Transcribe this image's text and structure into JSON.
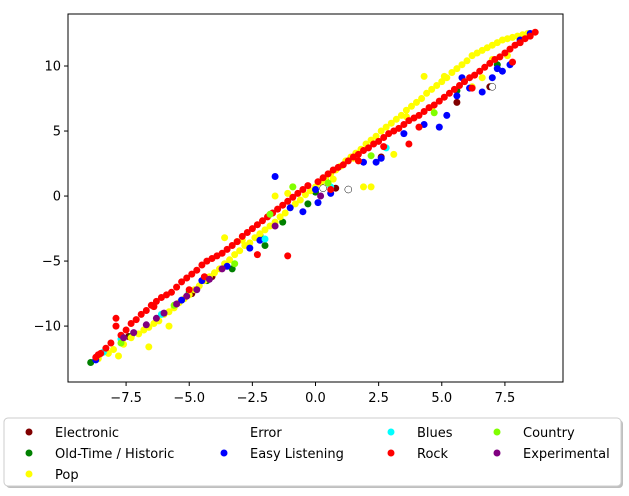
{
  "chart_data": {
    "type": "scatter",
    "title": "",
    "xlabel": "",
    "ylabel": "",
    "xlim": [
      -9.8,
      9.8
    ],
    "ylim": [
      -14.3,
      14.0
    ],
    "xticks": [
      -7.5,
      -5.0,
      -2.5,
      0.0,
      2.5,
      5.0,
      7.5
    ],
    "xtick_labels": [
      "−7.5",
      "−5.0",
      "−2.5",
      "0.0",
      "2.5",
      "5.0",
      "7.5"
    ],
    "yticks": [
      -10,
      -5,
      0,
      5,
      10
    ],
    "ytick_labels": [
      "−10",
      "−5",
      "0",
      "5",
      "10"
    ],
    "grid": false,
    "legend_position": "bottom",
    "series": [
      {
        "name": "Electronic",
        "color": "#800000",
        "x": [
          -8.6,
          -7.4,
          -4.9,
          -4.1,
          0.8,
          2.6,
          5.6,
          6.9,
          8.1
        ],
        "y": [
          -12.3,
          -10.8,
          -7.5,
          -6.2,
          0.6,
          3.0,
          7.2,
          8.4,
          11.8
        ]
      },
      {
        "name": "Old-Time / Historic",
        "color": "#008000",
        "x": [
          -8.9,
          -7.3,
          -5.0,
          -4.3,
          -3.3,
          -2.2,
          -2.0,
          -1.3,
          -0.3,
          0.0,
          0.4,
          5.6,
          7.2
        ],
        "y": [
          -12.8,
          -10.8,
          -7.4,
          -6.5,
          -5.6,
          -3.0,
          -3.8,
          -2.0,
          -0.6,
          0.3,
          1.2,
          8.1,
          10.1
        ]
      },
      {
        "name": "Pop",
        "color": "#ffff00",
        "x": [
          -8.6,
          -8.2,
          -8.0,
          -7.6,
          -7.3,
          -7.0,
          -6.8,
          -6.6,
          -6.4,
          -6.2,
          -6.0,
          -5.8,
          -5.6,
          -5.4,
          -5.2,
          -5.0,
          -4.8,
          -4.6,
          -4.4,
          -4.2,
          -4.0,
          -3.8,
          -3.6,
          -3.4,
          -3.2,
          -3.0,
          -2.8,
          -2.6,
          -2.4,
          -2.2,
          -2.0,
          -1.8,
          -1.6,
          -1.4,
          -1.2,
          -1.0,
          -0.8,
          -0.6,
          -0.4,
          -0.2,
          0.0,
          0.2,
          0.4,
          0.6,
          0.8,
          1.0,
          1.2,
          1.4,
          1.6,
          1.8,
          2.0,
          2.2,
          2.4,
          2.6,
          2.8,
          3.0,
          3.2,
          3.4,
          3.6,
          3.8,
          4.0,
          4.2,
          4.4,
          4.6,
          4.8,
          5.0,
          5.2,
          5.4,
          5.6,
          5.8,
          6.0,
          6.2,
          6.4,
          6.6,
          6.8,
          7.0,
          7.2,
          7.4,
          7.6,
          7.8,
          8.0,
          8.2,
          8.4,
          -6.6,
          -5.8,
          -3.6,
          -2.9,
          -1.6,
          -0.9,
          0.7,
          1.9,
          2.2,
          3.1,
          4.3,
          5.1,
          6.2,
          7.0,
          7.6,
          -7.8,
          -3.1,
          0.3,
          3.6,
          6.6,
          -1.1,
          1.5,
          4.6
        ],
        "y": [
          -12.5,
          -12.1,
          -11.8,
          -11.4,
          -10.9,
          -10.6,
          -10.3,
          -10.1,
          -9.8,
          -9.6,
          -9.1,
          -8.9,
          -8.6,
          -8.2,
          -7.9,
          -7.6,
          -7.2,
          -6.9,
          -6.5,
          -6.2,
          -5.9,
          -5.6,
          -5.2,
          -4.9,
          -4.5,
          -4.2,
          -3.8,
          -3.6,
          -3.2,
          -2.9,
          -2.6,
          -2.3,
          -2.0,
          -1.6,
          -1.3,
          -0.9,
          -0.6,
          -0.3,
          0.1,
          0.4,
          0.7,
          1.0,
          1.4,
          1.7,
          2.0,
          2.3,
          2.7,
          3.0,
          3.3,
          3.6,
          4.0,
          4.3,
          4.6,
          5.0,
          5.3,
          5.6,
          5.9,
          6.2,
          6.6,
          6.9,
          7.2,
          7.5,
          7.9,
          8.2,
          8.5,
          8.8,
          9.1,
          9.5,
          9.8,
          10.1,
          10.4,
          10.8,
          11.0,
          11.2,
          11.4,
          11.6,
          11.8,
          12.0,
          12.1,
          12.2,
          12.3,
          12.4,
          12.5,
          -11.6,
          -10.0,
          -3.2,
          -3.4,
          0.0,
          0.7,
          1.3,
          0.7,
          0.7,
          3.2,
          9.2,
          9.2,
          8.4,
          10.5,
          10.8,
          -12.3,
          -3.5,
          1.2,
          6.1,
          9.1,
          0.2,
          2.9,
          6.8
        ]
      },
      {
        "name": "Error",
        "color": "#ffffff",
        "stroke": "#000000",
        "x": [
          0.3,
          1.3,
          7.0
        ],
        "y": [
          0.6,
          0.5,
          8.4
        ]
      },
      {
        "name": "Easy Listening",
        "color": "#0000ff",
        "x": [
          -8.7,
          -5.3,
          -4.5,
          -3.5,
          -2.6,
          -2.2,
          -1.6,
          -1.0,
          -0.5,
          0.0,
          0.1,
          0.6,
          1.9,
          2.4,
          2.6,
          3.5,
          4.3,
          4.9,
          5.2,
          5.6,
          5.8,
          6.1,
          6.6,
          7.0,
          7.2,
          7.4,
          7.7,
          8.1,
          8.5
        ],
        "y": [
          -12.6,
          -8.0,
          -6.5,
          -5.4,
          -4.0,
          -3.4,
          1.5,
          -0.9,
          -1.2,
          0.5,
          -0.5,
          0.2,
          2.6,
          2.6,
          2.9,
          4.8,
          5.5,
          5.3,
          6.2,
          7.7,
          9.1,
          8.3,
          8.0,
          9.1,
          9.8,
          9.6,
          10.1,
          12.0,
          12.5
        ]
      },
      {
        "name": "Blues",
        "color": "#00ffff",
        "x": [
          -8.4,
          -7.7,
          -6.1,
          -2.0,
          0.6,
          2.8
        ],
        "y": [
          -12.0,
          -11.0,
          -9.1,
          -3.3,
          0.7,
          3.7
        ]
      },
      {
        "name": "Rock",
        "color": "#ff0000",
        "x": [
          -8.7,
          -8.5,
          -8.3,
          -8.1,
          -7.9,
          -7.7,
          -7.5,
          -7.3,
          -7.1,
          -6.9,
          -6.7,
          -6.5,
          -6.3,
          -6.1,
          -5.9,
          -5.7,
          -5.5,
          -5.3,
          -5.1,
          -4.9,
          -4.7,
          -4.5,
          -4.3,
          -4.1,
          -3.9,
          -3.7,
          -3.5,
          -3.3,
          -3.1,
          -2.9,
          -2.7,
          -2.5,
          -2.3,
          -2.1,
          -1.9,
          -1.7,
          -1.5,
          -1.3,
          -1.1,
          -0.9,
          -0.7,
          -0.5,
          -0.3,
          0.1,
          0.3,
          0.5,
          0.7,
          0.9,
          1.1,
          1.3,
          1.5,
          1.7,
          1.9,
          2.1,
          2.3,
          2.5,
          2.7,
          2.9,
          3.1,
          3.3,
          3.5,
          3.7,
          3.9,
          4.1,
          4.3,
          4.5,
          4.7,
          4.9,
          5.1,
          5.3,
          5.5,
          5.7,
          5.9,
          6.1,
          6.3,
          6.5,
          6.7,
          6.9,
          7.1,
          7.3,
          7.5,
          7.7,
          7.9,
          8.1,
          8.3,
          8.5,
          8.7,
          -7.9,
          -6.4,
          -5.0,
          -2.3,
          -1.1,
          1.7,
          3.7,
          6.2,
          7.8,
          -8.6,
          -4.4,
          0.6,
          4.1,
          2.7
        ],
        "y": [
          -12.4,
          -12.1,
          -11.7,
          -11.3,
          -10.0,
          -10.7,
          -10.3,
          -9.8,
          -9.5,
          -9.1,
          -8.8,
          -8.4,
          -8.1,
          -7.8,
          -7.6,
          -7.4,
          -7.0,
          -6.6,
          -6.3,
          -6.0,
          -5.7,
          -5.3,
          -5.0,
          -4.8,
          -4.6,
          -4.4,
          -4.1,
          -3.8,
          -3.5,
          -3.1,
          -2.8,
          -2.5,
          -2.2,
          -1.9,
          -1.6,
          -1.3,
          -1.0,
          -0.7,
          -0.4,
          -0.1,
          0.2,
          0.5,
          0.8,
          1.1,
          1.4,
          1.7,
          2.0,
          2.2,
          2.4,
          2.7,
          3.0,
          3.2,
          3.5,
          3.7,
          4.0,
          4.2,
          4.5,
          4.8,
          5.0,
          5.2,
          5.5,
          5.8,
          6.0,
          6.2,
          6.5,
          6.8,
          7.0,
          7.3,
          7.6,
          7.9,
          8.2,
          8.5,
          8.8,
          9.1,
          9.3,
          9.6,
          9.9,
          10.2,
          10.5,
          10.7,
          11.0,
          11.3,
          11.6,
          11.8,
          12.1,
          12.3,
          12.6,
          -9.4,
          -8.5,
          -7.2,
          -4.5,
          -4.6,
          2.7,
          4.0,
          8.3,
          10.3,
          -12.2,
          -6.2,
          0.5,
          5.3,
          3.8
        ]
      },
      {
        "name": "Country",
        "color": "#80ff00",
        "x": [
          -7.7,
          -5.6,
          -3.2,
          -1.8,
          -0.9,
          0.5,
          2.2,
          4.7
        ],
        "y": [
          -11.3,
          -8.4,
          -5.2,
          -1.4,
          0.7,
          1.0,
          3.1,
          6.4
        ]
      },
      {
        "name": "Experimental",
        "color": "#800080",
        "x": [
          -7.6,
          -7.2,
          -6.7,
          -6.3,
          -6.0,
          -5.5,
          -5.1,
          -4.7,
          -4.2,
          -3.7,
          -1.6,
          0.2
        ],
        "y": [
          -10.9,
          -10.5,
          -9.9,
          -9.4,
          -9.0,
          -8.3,
          -7.7,
          -7.2,
          -6.4,
          -5.6,
          -2.3,
          0.0
        ]
      }
    ]
  }
}
